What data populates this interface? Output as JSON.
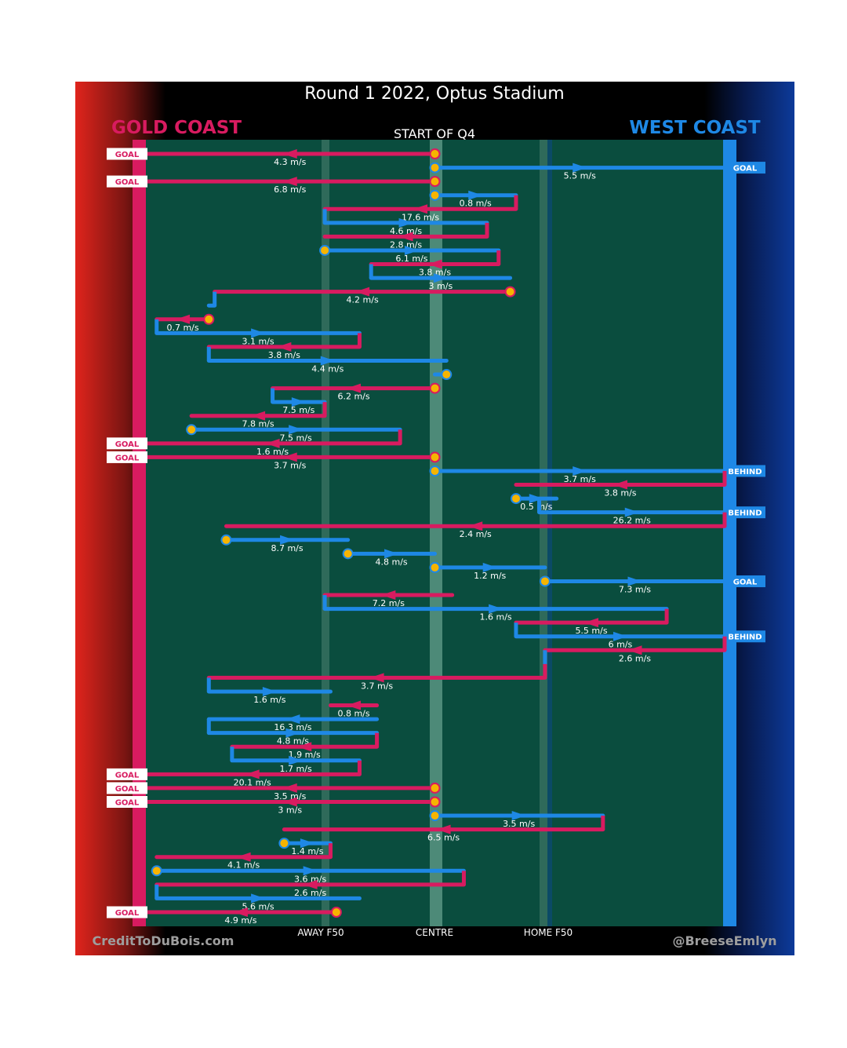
{
  "chart_data": {
    "type": "line",
    "title": "Round 1 2022, Optus Stadium",
    "subtitle": "START OF Q4",
    "home_team": "GOLD COAST",
    "away_team": "WEST COAST",
    "footer_left": "CreditToDuBois.com",
    "footer_right": "@BreeseEmlyn",
    "axis_labels": [
      "AWAY F50",
      "CENTRE",
      "HOME F50"
    ],
    "x_axis": "field position (0 = Gold Coast goal, 100 = West Coast goal)",
    "x_range": [
      0,
      100
    ],
    "colors": {
      "gold_coast": "#d81b60",
      "west_coast": "#1e88e5",
      "field": "#0a4d3e",
      "stoppage": "#f6b400",
      "background": "#000000"
    },
    "chains": [
      {
        "team": "GC",
        "from": 50,
        "to": 0,
        "speed": "4.3 m/s",
        "outcome": "GOAL",
        "stoppage": true
      },
      {
        "team": "WC",
        "from": 50,
        "to": 100,
        "speed": "5.5 m/s",
        "outcome": "GOAL",
        "stoppage": true
      },
      {
        "team": "GC",
        "from": 50,
        "to": 0,
        "speed": "6.8 m/s",
        "outcome": "GOAL",
        "stoppage": true
      },
      {
        "team": "WC",
        "from": 50,
        "to": 64,
        "speed": "0.8 m/s",
        "stoppage": true
      },
      {
        "team": "GC",
        "from": 64,
        "to": 31,
        "speed": "17.6 m/s"
      },
      {
        "team": "WC",
        "from": 31,
        "to": 59,
        "speed": "4.6 m/s"
      },
      {
        "team": "GC",
        "from": 59,
        "to": 31,
        "speed": "2.8 m/s"
      },
      {
        "team": "WC",
        "from": 31,
        "to": 61,
        "speed": "6.1 m/s",
        "stoppage": true
      },
      {
        "team": "GC",
        "from": 61,
        "to": 39,
        "speed": "3.8 m/s"
      },
      {
        "team": "WC",
        "from": 39,
        "to": 63,
        "speed": "3 m/s"
      },
      {
        "team": "GC",
        "from": 63,
        "to": 12,
        "speed": "4.2 m/s",
        "stoppage": true
      },
      {
        "team": "WC",
        "from": 12,
        "to": 11,
        "speed": ""
      },
      {
        "team": "GC",
        "from": 11,
        "to": 2,
        "speed": "0.7 m/s",
        "stoppage": true
      },
      {
        "team": "WC",
        "from": 2,
        "to": 37,
        "speed": "3.1 m/s"
      },
      {
        "team": "GC",
        "from": 37,
        "to": 11,
        "speed": "3.8 m/s"
      },
      {
        "team": "WC",
        "from": 11,
        "to": 52,
        "speed": "4.4 m/s"
      },
      {
        "team": "WC",
        "from": 52,
        "to": 50,
        "speed": "",
        "stoppage": true
      },
      {
        "team": "GC",
        "from": 50,
        "to": 22,
        "speed": "6.2 m/s",
        "stoppage": true
      },
      {
        "team": "WC",
        "from": 22,
        "to": 31,
        "speed": "7.5 m/s"
      },
      {
        "team": "GC",
        "from": 31,
        "to": 8,
        "speed": "7.8 m/s"
      },
      {
        "team": "WC",
        "from": 8,
        "to": 44,
        "speed": "7.5 m/s",
        "stoppage": true
      },
      {
        "team": "GC",
        "from": 44,
        "to": 0,
        "speed": "1.6 m/s",
        "outcome": "GOAL"
      },
      {
        "team": "GC",
        "from": 50,
        "to": 0,
        "speed": "3.7 m/s",
        "outcome": "GOAL",
        "stoppage": true
      },
      {
        "team": "WC",
        "from": 50,
        "to": 100,
        "speed": "3.7 m/s",
        "outcome": "BEHIND",
        "stoppage": true
      },
      {
        "team": "GC",
        "from": 100,
        "to": 64,
        "speed": "3.8 m/s"
      },
      {
        "team": "WC",
        "from": 64,
        "to": 71,
        "speed": "0.5 m/s",
        "stoppage": true
      },
      {
        "team": "WC",
        "from": 68,
        "to": 100,
        "speed": "26.2 m/s",
        "outcome": "BEHIND"
      },
      {
        "team": "GC",
        "from": 100,
        "to": 14,
        "speed": "2.4 m/s"
      },
      {
        "team": "WC",
        "from": 14,
        "to": 35,
        "speed": "8.7 m/s",
        "stoppage": true
      },
      {
        "team": "WC",
        "from": 35,
        "to": 50,
        "speed": "4.8 m/s",
        "stoppage": true
      },
      {
        "team": "WC",
        "from": 50,
        "to": 69,
        "speed": "1.2 m/s",
        "stoppage": true
      },
      {
        "team": "WC",
        "from": 69,
        "to": 100,
        "speed": "7.3 m/s",
        "outcome": "GOAL",
        "stoppage": true
      },
      {
        "team": "GC",
        "from": 53,
        "to": 31,
        "speed": "7.2 m/s"
      },
      {
        "team": "WC",
        "from": 31,
        "to": 90,
        "speed": "1.6 m/s"
      },
      {
        "team": "GC",
        "from": 90,
        "to": 64,
        "speed": "5.5 m/s"
      },
      {
        "team": "WC",
        "from": 64,
        "to": 100,
        "speed": "6 m/s",
        "outcome": "BEHIND"
      },
      {
        "team": "GC",
        "from": 100,
        "to": 69,
        "speed": "2.6 m/s"
      },
      {
        "team": "WC",
        "from": 69,
        "to": 69,
        "speed": ""
      },
      {
        "team": "GC",
        "from": 69,
        "to": 11,
        "speed": "3.7 m/s"
      },
      {
        "team": "WC",
        "from": 11,
        "to": 32,
        "speed": "1.6 m/s"
      },
      {
        "team": "GC",
        "from": 40,
        "to": 32,
        "speed": "0.8 m/s"
      },
      {
        "team": "WC",
        "from": 40,
        "to": 11,
        "speed": "16.3 m/s"
      },
      {
        "team": "WC",
        "from": 11,
        "to": 40,
        "speed": "4.8 m/s"
      },
      {
        "team": "GC",
        "from": 40,
        "to": 15,
        "speed": "1.9 m/s"
      },
      {
        "team": "WC",
        "from": 15,
        "to": 37,
        "speed": "1.7 m/s"
      },
      {
        "team": "GC",
        "from": 37,
        "to": 0,
        "speed": "20.1 m/s",
        "outcome": "GOAL"
      },
      {
        "team": "GC",
        "from": 50,
        "to": 0,
        "speed": "3.5 m/s",
        "outcome": "GOAL",
        "stoppage": true
      },
      {
        "team": "GC",
        "from": 50,
        "to": 0,
        "speed": "3 m/s",
        "outcome": "GOAL",
        "stoppage": true
      },
      {
        "team": "WC",
        "from": 50,
        "to": 79,
        "speed": "3.5 m/s",
        "stoppage": true
      },
      {
        "team": "GC",
        "from": 79,
        "to": 24,
        "speed": "6.5 m/s"
      },
      {
        "team": "WC",
        "from": 24,
        "to": 32,
        "speed": "1.4 m/s",
        "stoppage": true
      },
      {
        "team": "GC",
        "from": 32,
        "to": 2,
        "speed": "4.1 m/s"
      },
      {
        "team": "WC",
        "from": 2,
        "to": 55,
        "speed": "3.6 m/s",
        "stoppage": true
      },
      {
        "team": "GC",
        "from": 55,
        "to": 2,
        "speed": "2.6 m/s"
      },
      {
        "team": "WC",
        "from": 2,
        "to": 37,
        "speed": "5.6 m/s"
      },
      {
        "team": "GC",
        "from": 33,
        "to": 0,
        "speed": "4.9 m/s",
        "outcome": "GOAL",
        "stoppage": true
      }
    ]
  }
}
